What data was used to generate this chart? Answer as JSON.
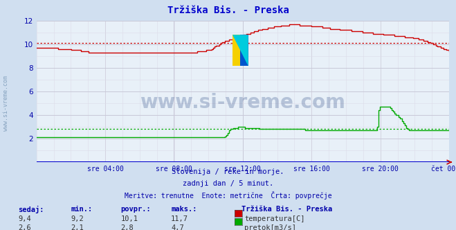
{
  "title": "Tržiška Bis. - Preska",
  "bg_color": "#d0dff0",
  "plot_bg_color": "#e8f0f8",
  "grid_color_major": "#c8c8d8",
  "grid_color_minor": "#dcdce8",
  "x_labels": [
    "sre 04:00",
    "sre 08:00",
    "sre 12:00",
    "sre 16:00",
    "sre 20:00",
    "čet 00:00"
  ],
  "x_ticks_norm": [
    0.1667,
    0.3333,
    0.5,
    0.6667,
    0.8333,
    1.0
  ],
  "y_min": 0,
  "y_max": 12,
  "y_ticks": [
    2,
    4,
    6,
    8,
    10,
    12
  ],
  "temp_avg": 10.1,
  "flow_avg": 2.8,
  "temp_color": "#cc0000",
  "flow_color": "#00aa00",
  "watermark": "www.si-vreme.com",
  "subtitle1": "Slovenija / reke in morje.",
  "subtitle2": "zadnji dan / 5 minut.",
  "subtitle3": "Meritve: trenutne  Enote: metrične  Črta: povprečje",
  "legend_title": "Tržiška Bis. - Preska",
  "legend_items": [
    {
      "label": "temperatura[C]",
      "color": "#cc0000"
    },
    {
      "label": "pretok[m3/s]",
      "color": "#00aa00"
    }
  ],
  "stats_headers": [
    "sedaj:",
    "min.:",
    "povpr.:",
    "maks.:"
  ],
  "stats_temp": [
    "9,4",
    "9,2",
    "10,1",
    "11,7"
  ],
  "stats_flow": [
    "2,6",
    "2,1",
    "2,8",
    "4,7"
  ],
  "title_color": "#0000cc",
  "label_color": "#0000aa",
  "stats_color": "#0000aa",
  "watermark_color": "#1a3a7a",
  "left_label": "www.si-vreme.com",
  "n_points": 288
}
